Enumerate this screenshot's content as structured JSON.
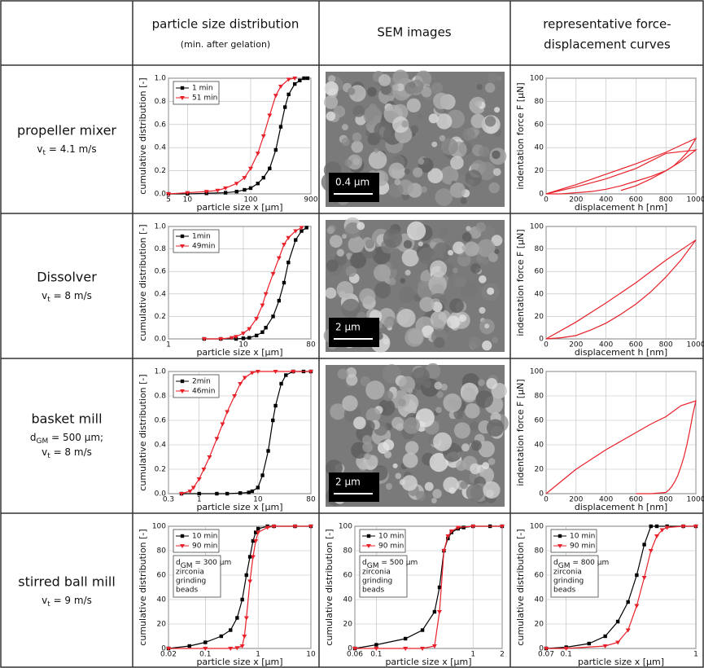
{
  "table": {
    "header": {
      "psd": "particle size distribution",
      "psd_note": "(min. after gelation)",
      "sem": "SEM images",
      "force": [
        "representative force-",
        "displacement curves"
      ]
    },
    "rows": [
      {
        "label": "propeller mixer",
        "params": [
          {
            "sym": "v",
            "sub": "t",
            "text": " = 4.1 m/s"
          }
        ],
        "sem_scale": "0.4 µm"
      },
      {
        "label": "Dissolver",
        "params": [
          {
            "sym": "v",
            "sub": "t",
            "text": " = 8 m/s"
          }
        ],
        "sem_scale": "2 µm"
      },
      {
        "label": "basket mill",
        "params": [
          {
            "sym": "d",
            "sub": "GM",
            "text": " = 500 µm;"
          },
          {
            "sym": "v",
            "sub": "t",
            "text": " = 8 m/s"
          }
        ],
        "sem_scale": "2 µm"
      },
      {
        "label": "stirred ball mill",
        "params": [
          {
            "sym": "v",
            "sub": "t",
            "text": " = 9 m/s"
          }
        ]
      }
    ]
  },
  "chart_data": [
    {
      "type": "line",
      "xscale": "log",
      "xlim": [
        5,
        900
      ],
      "xticks": [
        5,
        10,
        100,
        900
      ],
      "ylim": [
        0,
        1
      ],
      "yticks": [
        {
          "value": 0,
          "label": "0.0"
        },
        0.2,
        0.4,
        0.6,
        0.8,
        {
          "value": 1,
          "label": "1.0"
        }
      ],
      "grid": true,
      "legend": "upper left",
      "xlabel": "particle size x [µm]",
      "ylabel": "cumulative distribution [-]",
      "series": [
        {
          "name": "1 min",
          "color": "#000000",
          "marker": "square",
          "x": [
            5,
            10,
            20,
            40,
            60,
            80,
            100,
            130,
            160,
            200,
            250,
            300,
            350,
            400,
            500,
            600,
            700,
            800
          ],
          "values": [
            0,
            0,
            0.005,
            0.01,
            0.02,
            0.035,
            0.05,
            0.09,
            0.14,
            0.22,
            0.38,
            0.58,
            0.75,
            0.86,
            0.95,
            0.98,
            1,
            1
          ]
        },
        {
          "name": "51 min",
          "color": "#e8202a",
          "marker": "triangle",
          "x": [
            5,
            10,
            20,
            30,
            40,
            60,
            80,
            100,
            130,
            160,
            200,
            250,
            300,
            400,
            500
          ],
          "values": [
            0,
            0.01,
            0.02,
            0.03,
            0.05,
            0.09,
            0.14,
            0.22,
            0.35,
            0.5,
            0.68,
            0.85,
            0.93,
            0.99,
            1
          ]
        }
      ]
    },
    {
      "type": "line",
      "xlim": [
        0,
        1000
      ],
      "xticks": [
        0,
        200,
        400,
        600,
        800,
        1000
      ],
      "ylim": [
        0,
        100
      ],
      "yticks": [
        0,
        20,
        40,
        60,
        80,
        100
      ],
      "grid": true,
      "xlabel": "displacement h [nm]",
      "ylabel": "indentation force F [µN]",
      "series": [
        {
          "color": "#e8202a",
          "x": [
            0,
            200,
            400,
            600,
            800,
            1000,
            950,
            900,
            850,
            800,
            700,
            600,
            500,
            400,
            300,
            200,
            100,
            0
          ],
          "values": [
            0,
            8,
            17,
            26,
            36,
            48,
            37,
            30,
            24,
            20,
            15,
            11,
            7,
            4,
            2,
            1,
            0,
            0
          ]
        },
        {
          "color": "#e8202a",
          "x": [
            0,
            200,
            400,
            600,
            800,
            1000,
            900,
            800,
            700,
            600,
            500
          ],
          "values": [
            0,
            6,
            13,
            22,
            35,
            38,
            28,
            20,
            13,
            7,
            3
          ]
        }
      ]
    },
    {
      "type": "line",
      "xscale": "log",
      "xlim": [
        1,
        80
      ],
      "xticks": [
        1,
        10,
        80
      ],
      "ylim": [
        0,
        1
      ],
      "yticks": [
        {
          "value": 0,
          "label": "0.0"
        },
        0.2,
        0.4,
        0.6,
        0.8,
        {
          "value": 1,
          "label": "1.0"
        }
      ],
      "grid": true,
      "legend": "upper left",
      "xlabel": "particle size x [µm]",
      "ylabel": "cumulative distribution [-]",
      "series": [
        {
          "name": "1min",
          "color": "#000000",
          "marker": "square",
          "x": [
            3,
            5,
            8,
            10,
            12,
            15,
            18,
            20,
            25,
            30,
            35,
            40,
            50,
            60,
            70
          ],
          "values": [
            0,
            0,
            0,
            0.005,
            0.01,
            0.03,
            0.06,
            0.1,
            0.2,
            0.34,
            0.5,
            0.68,
            0.88,
            0.96,
            0.99
          ]
        },
        {
          "name": "49min",
          "color": "#e8202a",
          "marker": "triangle",
          "x": [
            3,
            5,
            7,
            8,
            10,
            12,
            15,
            18,
            20,
            25,
            30,
            35,
            40,
            50,
            60
          ],
          "values": [
            0,
            0,
            0.01,
            0.02,
            0.05,
            0.09,
            0.18,
            0.3,
            0.4,
            0.58,
            0.72,
            0.84,
            0.9,
            0.96,
            0.99
          ]
        }
      ]
    },
    {
      "type": "line",
      "xlim": [
        0,
        1000
      ],
      "xticks": [
        0,
        200,
        400,
        600,
        800,
        1000
      ],
      "ylim": [
        0,
        100
      ],
      "yticks": [
        0,
        20,
        40,
        60,
        80,
        100
      ],
      "grid": true,
      "xlabel": "displacement h [nm]",
      "ylabel": "indentation force F [µN]",
      "series": [
        {
          "color": "#e8202a",
          "x": [
            0,
            200,
            400,
            600,
            800,
            1000,
            900,
            800,
            700,
            600,
            500,
            400,
            300,
            200,
            100,
            0
          ],
          "values": [
            0,
            15,
            32,
            50,
            70,
            88,
            70,
            55,
            42,
            31,
            22,
            14,
            8,
            3,
            1,
            0
          ]
        }
      ]
    },
    {
      "type": "line",
      "xscale": "log",
      "xlim": [
        0.3,
        80
      ],
      "xticks": [
        0.3,
        1,
        10,
        80
      ],
      "ylim": [
        0,
        1
      ],
      "yticks": [
        {
          "value": 0,
          "label": "0.0"
        },
        0.2,
        0.4,
        0.6,
        0.8,
        {
          "value": 1,
          "label": "1.0"
        }
      ],
      "grid": true,
      "legend": "upper left",
      "xlabel": "particle size x [µm]",
      "ylabel": "cumulative distribution [-]",
      "series": [
        {
          "name": "2min",
          "color": "#000000",
          "marker": "square",
          "x": [
            0.5,
            1,
            2,
            3,
            5,
            7,
            8,
            10,
            12,
            15,
            18,
            20,
            25,
            30,
            40,
            60,
            80
          ],
          "values": [
            0,
            0,
            0,
            0,
            0.005,
            0.01,
            0.02,
            0.05,
            0.15,
            0.35,
            0.6,
            0.72,
            0.9,
            0.97,
            1,
            1,
            1
          ]
        },
        {
          "name": "46min",
          "color": "#e8202a",
          "marker": "triangle",
          "x": [
            0.5,
            0.7,
            0.8,
            1,
            1.2,
            1.5,
            2,
            2.5,
            3,
            4,
            5,
            6,
            8,
            10,
            20,
            40,
            80
          ],
          "values": [
            0,
            0.02,
            0.05,
            0.12,
            0.2,
            0.3,
            0.45,
            0.57,
            0.67,
            0.8,
            0.9,
            0.95,
            0.99,
            1,
            1,
            1,
            1
          ]
        }
      ]
    },
    {
      "type": "line",
      "xlim": [
        0,
        1000
      ],
      "xticks": [
        0,
        200,
        400,
        600,
        800,
        1000
      ],
      "ylim": [
        0,
        100
      ],
      "yticks": [
        0,
        20,
        40,
        60,
        80,
        100
      ],
      "grid": true,
      "xlabel": "displacement h [nm]",
      "ylabel": "indentation force F [µN]",
      "series": [
        {
          "color": "#e8202a",
          "x": [
            0,
            100,
            200,
            300,
            400,
            500,
            600,
            700,
            800,
            900,
            1000,
            980,
            960,
            940,
            920,
            900,
            880,
            860,
            840,
            820,
            800,
            750,
            700,
            650,
            600
          ],
          "values": [
            0,
            10,
            20,
            28,
            36,
            43,
            50,
            57,
            63,
            72,
            76,
            65,
            52,
            40,
            30,
            22,
            15,
            10,
            6,
            3,
            1,
            0.5,
            0,
            0,
            0
          ]
        }
      ]
    },
    {
      "type": "line",
      "xscale": "log",
      "xlim": [
        0.02,
        10
      ],
      "xticks": [
        0.02,
        0.1,
        1,
        10
      ],
      "ylim": [
        0,
        100
      ],
      "yticks": [
        0,
        20,
        40,
        60,
        80,
        100
      ],
      "grid": true,
      "legend": "upper left",
      "xlabel": "particle size x [µm]",
      "ylabel": "cumulative distribution [-]",
      "annotation": {
        "sym": "d",
        "sub": "GM",
        "text": " = 300 µm",
        "note": [
          "zirconia",
          "grinding",
          "beads"
        ]
      },
      "series": [
        {
          "name": "10 min",
          "color": "#000000",
          "marker": "square",
          "x": [
            0.02,
            0.05,
            0.1,
            0.2,
            0.3,
            0.4,
            0.5,
            0.6,
            0.7,
            0.8,
            0.9,
            1,
            1.5,
            2,
            5,
            10
          ],
          "values": [
            0,
            2,
            5,
            10,
            15,
            25,
            40,
            60,
            75,
            88,
            95,
            98,
            100,
            100,
            100,
            100
          ]
        },
        {
          "name": "90 min",
          "color": "#e8202a",
          "marker": "triangle",
          "x": [
            0.02,
            0.1,
            0.3,
            0.4,
            0.5,
            0.55,
            0.6,
            0.7,
            0.8,
            0.9,
            1,
            1.5,
            2,
            5,
            10
          ],
          "values": [
            0,
            0,
            0,
            0.5,
            2,
            10,
            25,
            55,
            75,
            88,
            95,
            99,
            100,
            100,
            100
          ]
        }
      ]
    },
    {
      "type": "line",
      "xscale": "log",
      "xlim": [
        0.06,
        2
      ],
      "xticks": [
        0.06,
        0.1,
        1,
        2
      ],
      "ylim": [
        0,
        100
      ],
      "yticks": [
        0,
        20,
        40,
        60,
        80,
        100
      ],
      "grid": true,
      "legend": "upper left",
      "xlabel": "particle size x [µm]",
      "ylabel": "cumulative distribution [-]",
      "annotation": {
        "sym": "d",
        "sub": "GM",
        "text": " = 500 µm",
        "note": [
          "zirconia",
          "grinding",
          "beads"
        ]
      },
      "series": [
        {
          "name": "10 min",
          "color": "#000000",
          "marker": "square",
          "x": [
            0.06,
            0.1,
            0.2,
            0.3,
            0.4,
            0.45,
            0.5,
            0.55,
            0.6,
            0.7,
            0.8,
            1,
            1.5,
            2
          ],
          "values": [
            0,
            3,
            8,
            15,
            30,
            50,
            80,
            90,
            95,
            98,
            99,
            100,
            100,
            100
          ]
        },
        {
          "name": "90 min",
          "color": "#e8202a",
          "marker": "triangle",
          "x": [
            0.06,
            0.1,
            0.2,
            0.3,
            0.4,
            0.45,
            0.5,
            0.55,
            0.6,
            0.7,
            1,
            2
          ],
          "values": [
            0,
            0,
            0,
            0,
            2,
            30,
            80,
            92,
            96,
            99,
            100,
            100
          ]
        }
      ]
    },
    {
      "type": "line",
      "xscale": "log",
      "xlim": [
        0.07,
        1
      ],
      "xticks": [
        0.07,
        0.1,
        1
      ],
      "ylim": [
        0,
        100
      ],
      "yticks": [
        0,
        20,
        40,
        60,
        80,
        100
      ],
      "grid": true,
      "legend": "upper left",
      "xlabel": "particle size x [µm]",
      "ylabel": "cumulative distribution [-]",
      "annotation": {
        "sym": "d",
        "sub": "GM",
        "text": " = 800 µm",
        "note": [
          "zirconia",
          "grinding",
          "beads"
        ]
      },
      "series": [
        {
          "name": "10 min",
          "color": "#000000",
          "marker": "square",
          "x": [
            0.07,
            0.1,
            0.15,
            0.2,
            0.25,
            0.3,
            0.35,
            0.4,
            0.45,
            0.5,
            0.6,
            0.8,
            1
          ],
          "values": [
            0,
            1,
            4,
            10,
            22,
            38,
            60,
            85,
            100,
            100,
            100,
            100,
            100
          ]
        },
        {
          "name": "90 min",
          "color": "#e8202a",
          "marker": "triangle",
          "x": [
            0.07,
            0.1,
            0.2,
            0.25,
            0.3,
            0.35,
            0.4,
            0.45,
            0.5,
            0.55,
            0.6,
            0.8,
            1
          ],
          "values": [
            0,
            0,
            2,
            5,
            15,
            35,
            58,
            80,
            92,
            97,
            99,
            100,
            100
          ]
        }
      ]
    }
  ]
}
